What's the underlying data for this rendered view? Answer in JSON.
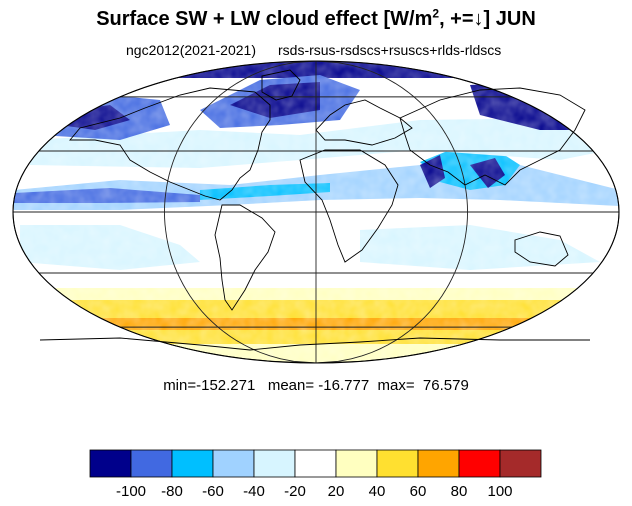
{
  "figure": {
    "title_main": "Surface SW + LW cloud effect [W/m",
    "title_exp": "2",
    "title_tail": ", +=↓]  JUN",
    "subtitle_left": "ngc2012(2021-2021)",
    "subtitle_right": "rsds-rsus-rsdscs+rsuscs+rlds-rldscs",
    "stats": "min=-152.271   mean= -16.777  max=  76.579"
  },
  "colorbar": {
    "colors": [
      "#00008b",
      "#4169e1",
      "#00bfff",
      "#a0d2ff",
      "#d7f5ff",
      "#ffffff",
      "#ffffc0",
      "#ffe030",
      "#ffa500",
      "#ff0000",
      "#a52a2a"
    ],
    "labels": [
      "-100",
      "-80",
      "-60",
      "-40",
      "-20",
      "20",
      "40",
      "60",
      "80",
      "100"
    ]
  },
  "map": {
    "projection": "Mollweide",
    "gridlines": {
      "parallels": [
        -60,
        -30,
        0,
        30,
        60
      ],
      "meridians": [
        -180,
        -90,
        0,
        90,
        180
      ]
    }
  }
}
